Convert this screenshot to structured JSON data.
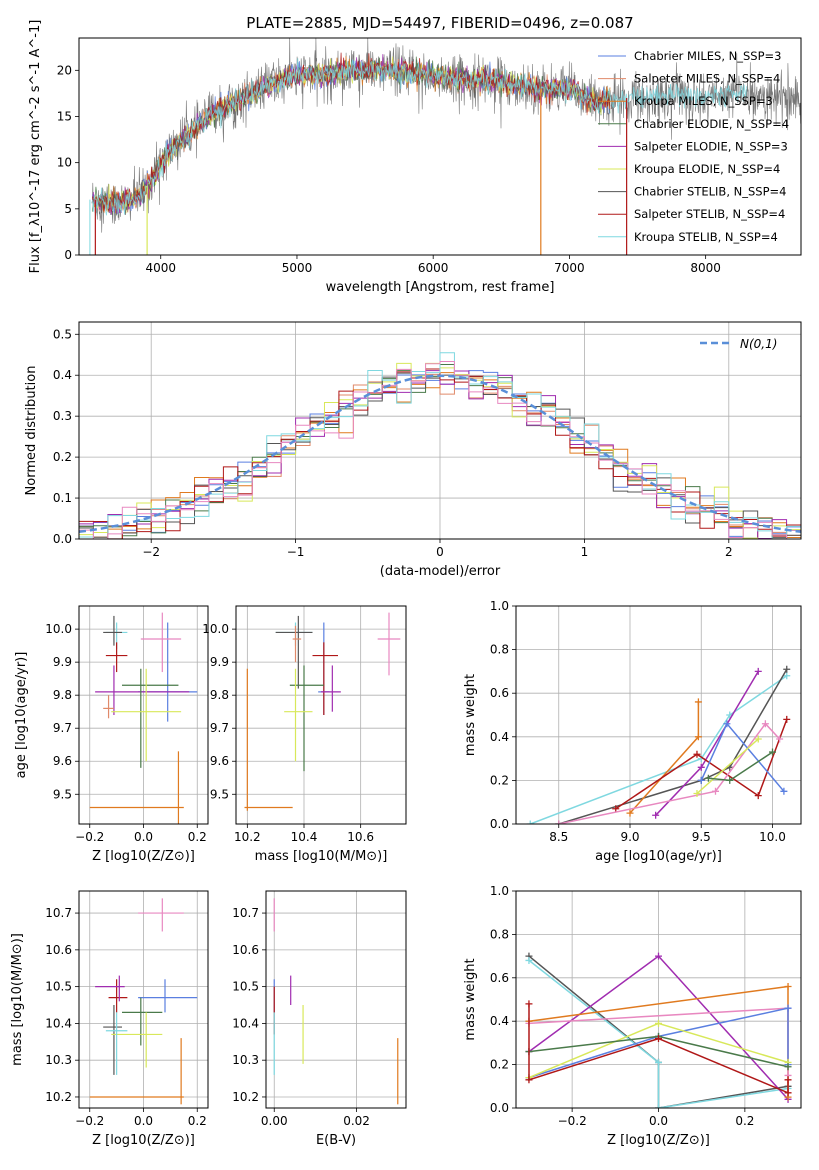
{
  "figure_title": "PLATE=2885, MJD=54497, FIBERID=0496, z=0.087",
  "colors": {
    "Chabrier MILES": "#5a7fe0",
    "Salpeter MILES": "#e08a6a",
    "Kroupa MILES": "#e07a1f",
    "Chabrier ELODIE": "#4a7a4a",
    "Salpeter ELODIE": "#a02cb0",
    "Kroupa ELODIE": "#d8e85a",
    "Chabrier STELIB": "#555555",
    "Salpeter STELIB": "#b01818",
    "Kroupa STELIB": "#7fd8e0",
    "Pink": "#e888c0",
    "Normal": "#5a8fd8",
    "Spectrum": "#777777"
  },
  "chart_data": [
    {
      "id": "spectrum",
      "type": "line",
      "xlabel": "wavelength [Angstrom, rest frame]",
      "ylabel": "Flux [f_λ10^-17 erg cm^-2 s^-1 A^-1]",
      "xlim": [
        3400,
        8700
      ],
      "ylim": [
        0,
        23.5
      ],
      "xticks": [
        4000,
        5000,
        6000,
        7000,
        8000
      ],
      "yticks": [
        0,
        5,
        10,
        15,
        20
      ],
      "legend_position": "upper-right",
      "legend": [
        "Chabrier MILES, N_SSP=3",
        "Salpeter MILES, N_SSP=4",
        "Kroupa MILES, N_SSP=3",
        "Chabrier ELODIE, N_SSP=4",
        "Salpeter ELODIE, N_SSP=3",
        "Kroupa ELODIE, N_SSP=4",
        "Chabrier STELIB, N_SSP=4",
        "Salpeter STELIB, N_SSP=4",
        "Kroupa STELIB, N_SSP=4"
      ],
      "legend_colors": [
        "#5a7fe0",
        "#e08a6a",
        "#e07a1f",
        "#4a7a4a",
        "#a02cb0",
        "#d8e85a",
        "#555555",
        "#b01818",
        "#7fd8e0"
      ],
      "continuum_x": [
        3500,
        3700,
        3850,
        3950,
        4050,
        4200,
        4400,
        4600,
        4800,
        5000,
        5200,
        5400,
        5600,
        5800,
        6000,
        6200,
        6400,
        6600,
        6800,
        7000,
        7200,
        7400,
        7600,
        7800,
        8000,
        8200,
        8400,
        8600
      ],
      "continuum_y": [
        6.0,
        5.5,
        6.5,
        8.5,
        11.0,
        13.0,
        15.5,
        17.0,
        18.5,
        19.5,
        19.5,
        20.0,
        20.0,
        19.8,
        19.5,
        19.0,
        19.0,
        18.5,
        18.0,
        18.0,
        16.5,
        17.0,
        17.0,
        17.5,
        17.0,
        17.5,
        17.5,
        17.0
      ],
      "model_end": 7300,
      "dropouts": [
        {
          "x": 3520,
          "color": "#b01818"
        },
        {
          "x": 3900,
          "color": "#d8e85a"
        },
        {
          "x": 6790,
          "color": "#e07a1f"
        },
        {
          "x": 7420,
          "color": "#b01818"
        }
      ]
    },
    {
      "id": "residuals",
      "type": "histogram",
      "xlabel": "(data-model)/error",
      "ylabel": "Normed distribution",
      "xlim": [
        -2.5,
        2.5
      ],
      "ylim": [
        0,
        0.53
      ],
      "xticks": [
        -2,
        -1,
        0,
        1,
        2
      ],
      "yticks": [
        0.0,
        0.1,
        0.2,
        0.3,
        0.4,
        0.5
      ],
      "grid": true,
      "legend_position": "upper-right",
      "legend": [
        "N(0,1)"
      ],
      "bins": 50
    },
    {
      "id": "age-vs-Z",
      "type": "errorbar",
      "xlabel": "Z [log10(Z/Z⊙)]",
      "ylabel": "age [log10(age/yr)]",
      "xlim": [
        -0.24,
        0.24
      ],
      "ylim": [
        9.41,
        10.07
      ],
      "xticks": [
        -0.2,
        0.0,
        0.2
      ],
      "yticks": [
        9.5,
        9.6,
        9.7,
        9.8,
        9.9,
        10.0
      ],
      "grid": true,
      "points": [
        {
          "model": "Kroupa MILES",
          "x": 0.13,
          "y": 9.46,
          "xlo": -0.2,
          "xhi": 0.15,
          "ylo": 9.41,
          "yhi": 9.63
        },
        {
          "model": "Chabrier MILES",
          "x": 0.09,
          "y": 9.81,
          "xlo": -0.02,
          "xhi": 0.2,
          "ylo": 9.72,
          "yhi": 10.02
        },
        {
          "model": "Pink",
          "x": 0.07,
          "y": 9.97,
          "xlo": -0.01,
          "xhi": 0.14,
          "ylo": 9.87,
          "yhi": 10.05
        },
        {
          "model": "Kroupa STELIB",
          "x": -0.1,
          "y": 9.99,
          "xlo": -0.14,
          "xhi": -0.06,
          "ylo": 9.94,
          "yhi": 10.02
        },
        {
          "model": "Chabrier STELIB",
          "x": -0.11,
          "y": 9.99,
          "xlo": -0.15,
          "xhi": -0.08,
          "ylo": 9.95,
          "yhi": 10.04
        },
        {
          "model": "Salpeter STELIB",
          "x": -0.1,
          "y": 9.92,
          "xlo": -0.14,
          "xhi": -0.06,
          "ylo": 9.87,
          "yhi": 9.96
        },
        {
          "model": "Salpeter ELODIE",
          "x": -0.11,
          "y": 9.81,
          "xlo": -0.18,
          "xhi": 0.17,
          "ylo": 9.74,
          "yhi": 9.89
        },
        {
          "model": "Chabrier ELODIE",
          "x": -0.01,
          "y": 9.83,
          "xlo": -0.08,
          "xhi": 0.13,
          "ylo": 9.58,
          "yhi": 9.88
        },
        {
          "model": "Kroupa ELODIE",
          "x": 0.01,
          "y": 9.75,
          "xlo": -0.12,
          "xhi": 0.14,
          "ylo": 9.6,
          "yhi": 9.88
        },
        {
          "model": "Salpeter MILES",
          "x": -0.13,
          "y": 9.76,
          "xlo": -0.15,
          "xhi": -0.11,
          "ylo": 9.73,
          "yhi": 9.8
        }
      ]
    },
    {
      "id": "age-vs-mass",
      "type": "errorbar",
      "xlabel": "mass [log10(M/M⊙)]",
      "ylabel": "",
      "xlim": [
        10.16,
        10.76
      ],
      "ylim": [
        9.41,
        10.07
      ],
      "xticks": [
        10.2,
        10.4,
        10.6
      ],
      "yticks": [
        9.5,
        9.6,
        9.7,
        9.8,
        9.9,
        10.0
      ],
      "grid": true,
      "points": [
        {
          "model": "Kroupa MILES",
          "x": 10.2,
          "y": 9.46,
          "xlo": 10.19,
          "xhi": 10.36,
          "ylo": 9.45,
          "yhi": 9.88
        },
        {
          "model": "Chabrier MILES",
          "x": 10.47,
          "y": 9.81,
          "xlo": 10.45,
          "xhi": 10.49,
          "ylo": 9.74,
          "yhi": 10.02
        },
        {
          "model": "Pink",
          "x": 10.7,
          "y": 9.97,
          "xlo": 10.66,
          "xhi": 10.74,
          "ylo": 9.86,
          "yhi": 10.05
        },
        {
          "model": "Kroupa STELIB",
          "x": 10.37,
          "y": 9.99,
          "xlo": 10.3,
          "xhi": 10.43,
          "ylo": 9.95,
          "yhi": 10.02
        },
        {
          "model": "Chabrier STELIB",
          "x": 10.38,
          "y": 9.99,
          "xlo": 10.3,
          "xhi": 10.43,
          "ylo": 9.82,
          "yhi": 10.04
        },
        {
          "model": "Salpeter STELIB",
          "x": 10.47,
          "y": 9.92,
          "xlo": 10.43,
          "xhi": 10.52,
          "ylo": 9.74,
          "yhi": 9.96
        },
        {
          "model": "Salpeter ELODIE",
          "x": 10.5,
          "y": 9.81,
          "xlo": 10.46,
          "xhi": 10.53,
          "ylo": 9.75,
          "yhi": 9.89
        },
        {
          "model": "Chabrier ELODIE",
          "x": 10.4,
          "y": 9.83,
          "xlo": 10.35,
          "xhi": 10.47,
          "ylo": 9.57,
          "yhi": 9.89
        },
        {
          "model": "Kroupa ELODIE",
          "x": 10.37,
          "y": 9.75,
          "xlo": 10.33,
          "xhi": 10.43,
          "ylo": 9.6,
          "yhi": 9.88
        },
        {
          "model": "Salpeter MILES",
          "x": 10.37,
          "y": 9.97,
          "xlo": 10.36,
          "xhi": 10.39,
          "ylo": 9.9,
          "yhi": 10.01
        }
      ]
    },
    {
      "id": "weight-vs-age",
      "type": "line",
      "xlabel": "age [log10(age/yr)]",
      "ylabel": "mass weight",
      "xlim": [
        8.2,
        10.2
      ],
      "ylim": [
        0,
        1.0
      ],
      "xticks": [
        8.5,
        9.0,
        9.5,
        10.0
      ],
      "yticks": [
        0.0,
        0.2,
        0.4,
        0.6,
        0.8,
        1.0
      ],
      "grid": true,
      "series": [
        {
          "model": "Kroupa STELIB",
          "x": [
            8.3,
            9.5,
            9.7,
            10.1
          ],
          "y": [
            0.0,
            0.3,
            0.5,
            0.68
          ]
        },
        {
          "model": "Chabrier STELIB",
          "x": [
            8.5,
            9.5,
            9.7,
            10.1
          ],
          "y": [
            0.0,
            0.2,
            0.26,
            0.71
          ]
        },
        {
          "model": "Salpeter ELODIE",
          "x": [
            9.18,
            9.5,
            9.9
          ],
          "y": [
            0.04,
            0.26,
            0.7
          ]
        },
        {
          "model": "Kroupa MILES",
          "x": [
            9.0,
            9.48,
            9.48
          ],
          "y": [
            0.05,
            0.4,
            0.56
          ]
        },
        {
          "model": "Salpeter STELIB",
          "x": [
            8.9,
            9.47,
            9.9,
            10.1
          ],
          "y": [
            0.07,
            0.32,
            0.13,
            0.48
          ]
        },
        {
          "model": "Pink",
          "x": [
            8.5,
            9.6,
            9.95,
            10.05
          ],
          "y": [
            0.0,
            0.15,
            0.46,
            0.39
          ]
        },
        {
          "model": "Chabrier MILES",
          "x": [
            9.5,
            9.68,
            10.08
          ],
          "y": [
            0.2,
            0.46,
            0.15
          ]
        },
        {
          "model": "Kroupa ELODIE",
          "x": [
            9.47,
            9.9
          ],
          "y": [
            0.14,
            0.39
          ]
        },
        {
          "model": "Chabrier ELODIE",
          "x": [
            9.55,
            9.7,
            10.0
          ],
          "y": [
            0.21,
            0.2,
            0.33
          ]
        }
      ]
    },
    {
      "id": "mass-vs-Z",
      "type": "errorbar",
      "xlabel": "Z [log10(Z/Z⊙)]",
      "ylabel": "mass [log10(M/M⊙)]",
      "xlim": [
        -0.24,
        0.24
      ],
      "ylim": [
        10.17,
        10.76
      ],
      "xticks": [
        -0.2,
        0.0,
        0.2
      ],
      "yticks": [
        10.2,
        10.3,
        10.4,
        10.5,
        10.6,
        10.7
      ],
      "grid": true,
      "points": [
        {
          "model": "Kroupa MILES",
          "x": 0.14,
          "y": 10.2,
          "xlo": -0.2,
          "xhi": 0.15,
          "ylo": 10.18,
          "yhi": 10.36
        },
        {
          "model": "Chabrier MILES",
          "x": 0.08,
          "y": 10.47,
          "xlo": -0.02,
          "xhi": 0.2,
          "ylo": 10.43,
          "yhi": 10.52
        },
        {
          "model": "Pink",
          "x": 0.07,
          "y": 10.7,
          "xlo": -0.02,
          "xhi": 0.15,
          "ylo": 10.65,
          "yhi": 10.74
        },
        {
          "model": "Salpeter STELIB",
          "x": -0.1,
          "y": 10.47,
          "xlo": -0.13,
          "xhi": -0.06,
          "ylo": 10.43,
          "yhi": 10.52
        },
        {
          "model": "Salpeter ELODIE",
          "x": -0.09,
          "y": 10.5,
          "xlo": -0.18,
          "xhi": -0.07,
          "ylo": 10.46,
          "yhi": 10.53
        },
        {
          "model": "Chabrier ELODIE",
          "x": -0.01,
          "y": 10.43,
          "xlo": -0.08,
          "xhi": 0.07,
          "ylo": 10.34,
          "yhi": 10.47
        },
        {
          "model": "Chabrier STELIB",
          "x": -0.11,
          "y": 10.39,
          "xlo": -0.15,
          "xhi": -0.08,
          "ylo": 10.26,
          "yhi": 10.45
        },
        {
          "model": "Kroupa ELODIE",
          "x": 0.01,
          "y": 10.37,
          "xlo": -0.12,
          "xhi": 0.07,
          "ylo": 10.28,
          "yhi": 10.43
        },
        {
          "model": "Kroupa STELIB",
          "x": -0.1,
          "y": 10.38,
          "xlo": -0.14,
          "xhi": -0.06,
          "ylo": 10.26,
          "yhi": 10.43
        }
      ]
    },
    {
      "id": "mass-vs-EBV",
      "type": "errorbar",
      "xlabel": "E(B-V)",
      "ylabel": "",
      "xlim": [
        -0.002,
        0.032
      ],
      "ylim": [
        10.17,
        10.76
      ],
      "xticks": [
        0.0,
        0.02
      ],
      "yticks": [
        10.2,
        10.3,
        10.4,
        10.5,
        10.6,
        10.7
      ],
      "grid": true,
      "points": [
        {
          "model": "Pink",
          "x": 0.0,
          "y": 10.7,
          "xlo": 0.0,
          "xhi": 0.0,
          "ylo": 10.65,
          "yhi": 10.74
        },
        {
          "model": "Chabrier MILES",
          "x": 0.0,
          "y": 10.47,
          "xlo": 0.0,
          "xhi": 0.0,
          "ylo": 10.43,
          "yhi": 10.52
        },
        {
          "model": "Salpeter ELODIE",
          "x": 0.004,
          "y": 10.49,
          "xlo": 0.004,
          "xhi": 0.004,
          "ylo": 10.45,
          "yhi": 10.53
        },
        {
          "model": "Salpeter STELIB",
          "x": 0.0,
          "y": 10.43,
          "xlo": 0.0,
          "xhi": 0.0,
          "ylo": 10.37,
          "yhi": 10.5
        },
        {
          "model": "Kroupa ELODIE",
          "x": 0.007,
          "y": 10.36,
          "xlo": 0.007,
          "xhi": 0.007,
          "ylo": 10.29,
          "yhi": 10.45
        },
        {
          "model": "Kroupa STELIB",
          "x": 0.0,
          "y": 10.34,
          "xlo": 0.0,
          "xhi": 0.0,
          "ylo": 10.26,
          "yhi": 10.43
        },
        {
          "model": "Kroupa MILES",
          "x": 0.03,
          "y": 10.24,
          "xlo": 0.03,
          "xhi": 0.03,
          "ylo": 10.18,
          "yhi": 10.36
        }
      ]
    },
    {
      "id": "weight-vs-Z",
      "type": "line",
      "xlabel": "Z [log10(Z/Z⊙)]",
      "ylabel": "mass weight",
      "xlim": [
        -0.33,
        0.33
      ],
      "ylim": [
        0,
        1.0
      ],
      "xticks": [
        -0.2,
        0.0,
        0.2
      ],
      "yticks": [
        0.0,
        0.2,
        0.4,
        0.6,
        0.8,
        1.0
      ],
      "grid": true,
      "series": [
        {
          "model": "Chabrier STELIB",
          "x": [
            -0.3,
            0.0,
            0.0,
            0.3
          ],
          "y": [
            0.7,
            0.21,
            0.0,
            0.1
          ]
        },
        {
          "model": "Kroupa STELIB",
          "x": [
            -0.3,
            0.0,
            0.0,
            0.3
          ],
          "y": [
            0.68,
            0.21,
            0.0,
            0.09
          ]
        },
        {
          "model": "Salpeter ELODIE",
          "x": [
            -0.3,
            0.0,
            0.3
          ],
          "y": [
            0.26,
            0.7,
            0.04
          ]
        },
        {
          "model": "Kroupa MILES",
          "x": [
            -0.3,
            0.3,
            0.3
          ],
          "y": [
            0.4,
            0.56,
            0.05
          ]
        },
        {
          "model": "Pink",
          "x": [
            -0.3,
            0.3,
            0.3
          ],
          "y": [
            0.39,
            0.46,
            0.15
          ]
        },
        {
          "model": "Chabrier MILES",
          "x": [
            -0.3,
            0.0,
            0.3,
            0.3
          ],
          "y": [
            0.14,
            0.33,
            0.46,
            0.2
          ]
        },
        {
          "model": "Kroupa ELODIE",
          "x": [
            -0.3,
            0.0,
            0.3
          ],
          "y": [
            0.14,
            0.39,
            0.21
          ]
        },
        {
          "model": "Chabrier ELODIE",
          "x": [
            -0.3,
            0.0,
            0.3
          ],
          "y": [
            0.26,
            0.33,
            0.19
          ]
        },
        {
          "model": "Salpeter STELIB",
          "x": [
            -0.3,
            -0.3,
            0.0,
            0.3,
            0.3
          ],
          "y": [
            0.48,
            0.13,
            0.32,
            0.07,
            0.13
          ]
        }
      ]
    }
  ]
}
